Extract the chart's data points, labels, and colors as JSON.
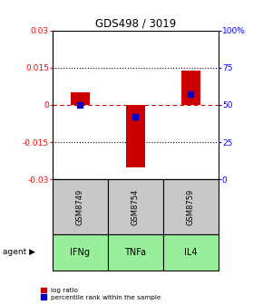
{
  "title": "GDS498 / 3019",
  "samples": [
    "GSM8749",
    "GSM8754",
    "GSM8759"
  ],
  "agents": [
    "IFNg",
    "TNFa",
    "IL4"
  ],
  "log_ratios": [
    0.005,
    -0.025,
    0.014
  ],
  "percentile_ranks": [
    0.5,
    0.42,
    0.57
  ],
  "ylim_left": [
    -0.03,
    0.03
  ],
  "yticks_left": [
    -0.03,
    -0.015,
    0,
    0.015,
    0.03
  ],
  "ytick_labels_left": [
    "-0.03",
    "-0.015",
    "0",
    "0.015",
    "0.03"
  ],
  "yticks_right": [
    0.0,
    0.25,
    0.5,
    0.75,
    1.0
  ],
  "ytick_labels_right": [
    "0",
    "25",
    "50",
    "75",
    "100%"
  ],
  "bar_color": "#cc0000",
  "marker_color": "#0000cc",
  "zero_line_color": "#cc0000",
  "sample_bg_color": "#c8c8c8",
  "agent_bg_color": "#99ee99",
  "bar_width": 0.35,
  "marker_size": 4,
  "title_fontsize": 8.5,
  "tick_fontsize": 6.5,
  "sample_fontsize": 6,
  "agent_fontsize": 7
}
